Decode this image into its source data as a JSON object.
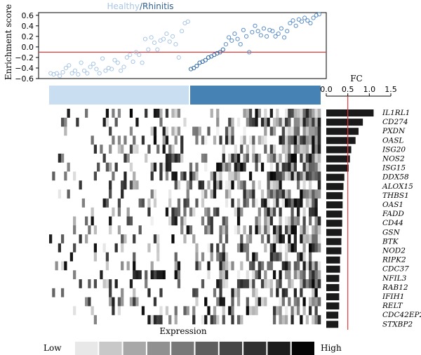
{
  "chart_data": [
    {
      "type": "scatter",
      "title_parts": {
        "healthy": "Healthy",
        "separator": "/",
        "rhinitis": "Rhinitis"
      },
      "ylabel": "Enrichment score",
      "ylim": [
        -0.6,
        0.65
      ],
      "yticks": [
        "0.6",
        "0.4",
        "0.2",
        "0.0",
        "−0.2",
        "−0.4",
        "−0.6"
      ],
      "ytick_values": [
        0.6,
        0.4,
        0.2,
        0.0,
        -0.2,
        -0.4,
        -0.6
      ],
      "threshold": -0.1,
      "colors": {
        "healthy": "#a9c6e6",
        "rhinitis": "#2f6aa8",
        "threshold": "#e03b3b"
      },
      "healthy_scores": [
        -0.5,
        -0.52,
        -0.5,
        -0.55,
        -0.48,
        -0.4,
        -0.35,
        -0.5,
        -0.45,
        -0.52,
        -0.3,
        -0.45,
        -0.5,
        -0.38,
        -0.32,
        -0.42,
        -0.5,
        -0.22,
        -0.45,
        -0.4,
        -0.42,
        -0.25,
        -0.3,
        -0.45,
        -0.38,
        -0.2,
        -0.15,
        -0.28,
        -0.1,
        -0.15,
        -0.3,
        0.15,
        -0.05,
        0.18,
        0.08,
        -0.05,
        0.12,
        0.15,
        0.25,
        0.1,
        0.2,
        0.05,
        -0.2,
        0.3,
        0.45,
        0.48
      ],
      "rhinitis_scores": [
        -0.42,
        -0.4,
        -0.36,
        -0.3,
        -0.28,
        -0.25,
        -0.2,
        -0.18,
        -0.15,
        -0.12,
        -0.1,
        -0.05,
        0.05,
        0.18,
        0.12,
        0.25,
        0.15,
        0.05,
        0.32,
        0.2,
        -0.1,
        0.28,
        0.4,
        0.3,
        0.22,
        0.35,
        0.2,
        0.32,
        0.3,
        0.2,
        0.25,
        0.35,
        0.18,
        0.3,
        0.45,
        0.5,
        0.4,
        0.52,
        0.48,
        0.55,
        0.5,
        0.45,
        0.55,
        0.6,
        0.62
      ]
    },
    {
      "type": "heatmap",
      "legend_title": "Expression",
      "low_label": "Low",
      "high_label": "High",
      "groups": [
        {
          "name": "Healthy",
          "n": 46
        },
        {
          "name": "Rhinitis",
          "n": 45
        }
      ],
      "group_colors": [
        "#c9def0",
        "#4682b4"
      ],
      "legend_colors": [
        "#e8e8e8",
        "#c8c8c8",
        "#a8a8a8",
        "#909090",
        "#787878",
        "#5e5e5e",
        "#474747",
        "#313131",
        "#1c1c1c",
        "#050505"
      ]
    },
    {
      "type": "bar",
      "xlabel": "FC",
      "xticks": [
        "0.0",
        "0.5",
        "1.0",
        "1.5"
      ],
      "xtick_values": [
        0,
        0.5,
        1.0,
        1.5
      ],
      "xlim": [
        0,
        1.5
      ],
      "threshold": 0.5,
      "categories": [
        "IL1RL1",
        "CD274",
        "PXDN",
        "OASL",
        "ISG20",
        "NOS2",
        "ISG15",
        "DDX58",
        "ALOX15",
        "THBS1",
        "OAS1",
        "FADD",
        "CD44",
        "GSN",
        "BTK",
        "NOD2",
        "RIPK2",
        "CDC37",
        "NFIL3",
        "RAB12",
        "IFIH1",
        "RELT",
        "CDC42EP2",
        "STXBP2"
      ],
      "values": [
        1.1,
        0.85,
        0.75,
        0.68,
        0.58,
        0.55,
        0.52,
        0.42,
        0.4,
        0.38,
        0.38,
        0.37,
        0.37,
        0.36,
        0.35,
        0.35,
        0.32,
        0.32,
        0.3,
        0.3,
        0.3,
        0.3,
        0.28,
        0.28
      ]
    }
  ]
}
